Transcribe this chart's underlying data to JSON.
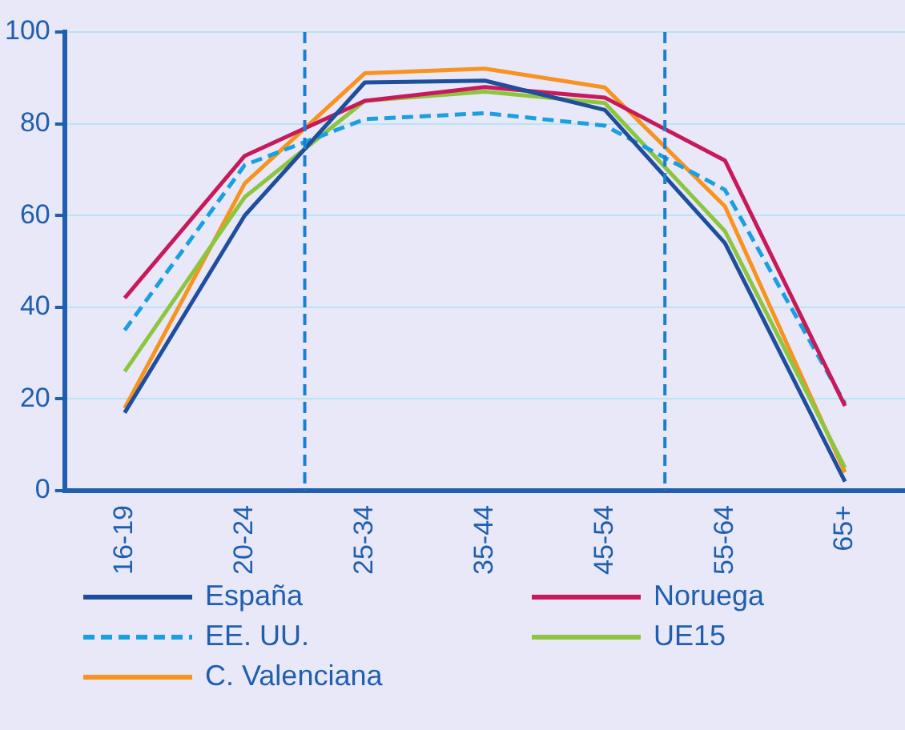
{
  "chart_data": {
    "type": "line",
    "categories": [
      "16-19",
      "20-24",
      "25-34",
      "35-44",
      "45-54",
      "55-64",
      "65+"
    ],
    "series": [
      {
        "name": "España",
        "color": "#1f4e9c",
        "values": [
          17,
          60,
          89,
          89.4,
          83,
          54,
          2
        ]
      },
      {
        "name": "Noruega",
        "color": "#c8195a",
        "values": [
          42,
          73,
          85,
          88,
          85.7,
          72,
          18.5
        ]
      },
      {
        "name": "EE. UU.",
        "color": "#1aa0e0",
        "line_style": "dashed",
        "values": [
          35,
          71,
          81,
          82.3,
          79.6,
          65.6,
          19
        ]
      },
      {
        "name": "UE15",
        "color": "#8cc63f",
        "values": [
          26,
          64,
          85,
          87,
          84.5,
          56.6,
          5
        ]
      },
      {
        "name": "C. Valenciana",
        "color": "#f7931e",
        "values": [
          18,
          67,
          91,
          92,
          87.9,
          62,
          4
        ]
      }
    ],
    "ylim": [
      0,
      100
    ],
    "yticks": [
      0,
      20,
      40,
      60,
      80,
      100
    ],
    "grid": "y",
    "legend": "bottom",
    "marker": "none",
    "line_style": "solid"
  }
}
